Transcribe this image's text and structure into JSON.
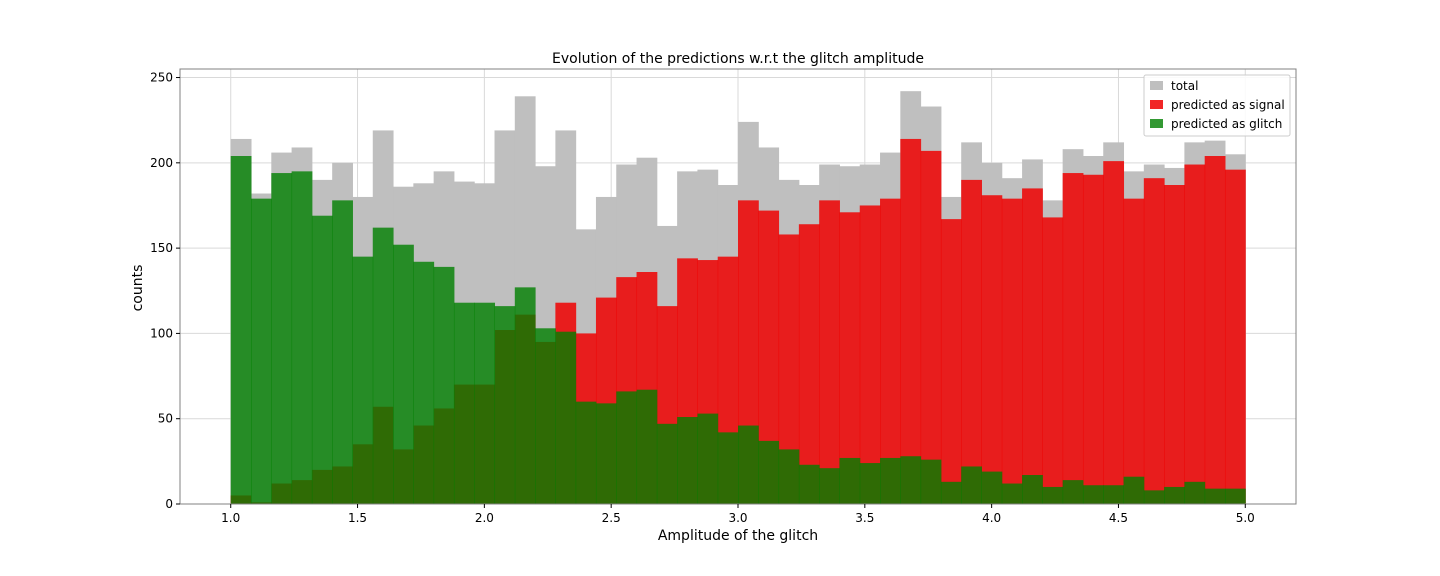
{
  "chart_data": {
    "type": "bar",
    "title": "Evolution of the predictions w.r.t the glitch amplitude",
    "xlabel": "Amplitude of the glitch",
    "ylabel": "counts",
    "xlim": [
      0.8,
      5.2
    ],
    "ylim": [
      0,
      255
    ],
    "x_ticks": [
      "1.0",
      "1.5",
      "2.0",
      "2.5",
      "3.0",
      "3.5",
      "4.0",
      "4.5",
      "5.0"
    ],
    "y_ticks": [
      "0",
      "50",
      "100",
      "150",
      "200",
      "250"
    ],
    "grid": true,
    "legend_position": "top-right",
    "bin_start": 1.0,
    "bin_width": 0.08,
    "series": [
      {
        "name": "total",
        "color": "#bfbfbf",
        "opacity": 1.0,
        "values": [
          214,
          182,
          206,
          209,
          190,
          200,
          180,
          219,
          186,
          188,
          195,
          189,
          188,
          219,
          239,
          198,
          219,
          161,
          180,
          199,
          203,
          163,
          195,
          196,
          187,
          224,
          209,
          190,
          187,
          199,
          198,
          199,
          206,
          242,
          233,
          180,
          212,
          200,
          191,
          202,
          178,
          208,
          204,
          212,
          195,
          199,
          197,
          212,
          213,
          205
        ]
      },
      {
        "name": "predicted as signal",
        "color": "#ee0000",
        "opacity": 0.85,
        "values": [
          5,
          1,
          12,
          14,
          20,
          22,
          35,
          57,
          32,
          46,
          56,
          70,
          70,
          102,
          111,
          95,
          118,
          100,
          121,
          133,
          136,
          116,
          144,
          143,
          145,
          178,
          172,
          158,
          164,
          178,
          171,
          175,
          179,
          214,
          207,
          167,
          190,
          181,
          179,
          185,
          168,
          194,
          193,
          201,
          179,
          191,
          187,
          199,
          204,
          196
        ]
      },
      {
        "name": "predicted as glitch",
        "color": "#008000",
        "opacity": 0.8,
        "values": [
          204,
          179,
          194,
          195,
          169,
          178,
          145,
          162,
          152,
          142,
          139,
          118,
          118,
          116,
          127,
          103,
          101,
          60,
          59,
          66,
          67,
          47,
          51,
          53,
          42,
          46,
          37,
          32,
          23,
          21,
          27,
          24,
          27,
          28,
          26,
          13,
          22,
          19,
          12,
          17,
          10,
          14,
          11,
          11,
          16,
          8,
          10,
          13,
          9,
          9
        ]
      }
    ]
  }
}
